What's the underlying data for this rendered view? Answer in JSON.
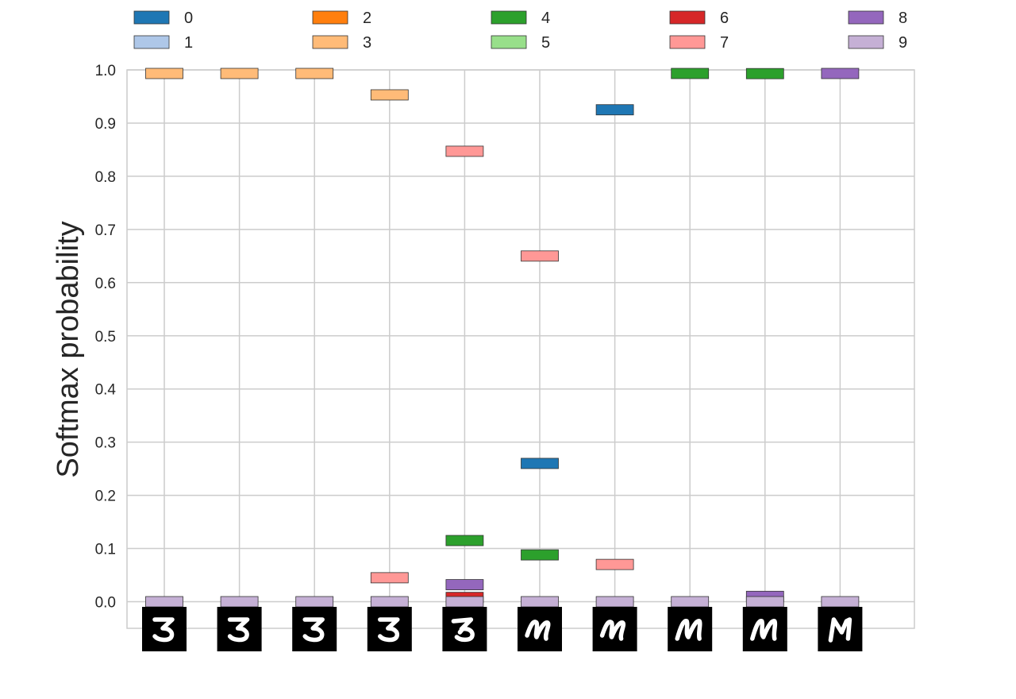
{
  "chart_data": {
    "type": "scatter",
    "title": "",
    "xlabel": "",
    "ylabel": "Softmax probability",
    "ylim": [
      -0.05,
      1.0
    ],
    "yticks": [
      "0.0",
      "0.1",
      "0.2",
      "0.3",
      "0.4",
      "0.5",
      "0.6",
      "0.7",
      "0.8",
      "0.9",
      "1.0"
    ],
    "grid": true,
    "legend_position": "top",
    "x_tick_images": [
      "digit-3",
      "digit-3",
      "digit-3",
      "digit-3",
      "digit-3-to-7",
      "digit-7",
      "digit-7",
      "digit-4",
      "digit-4",
      "digit-8"
    ],
    "series": [
      {
        "name": "0",
        "color": "#1f77b4",
        "values": [
          0.0,
          0.0,
          0.0,
          0.0,
          0.0,
          0.26,
          0.925,
          0.0,
          0.0,
          0.0
        ]
      },
      {
        "name": "1",
        "color": "#aec7e8",
        "values": [
          0.0,
          0.0,
          0.0,
          0.0,
          0.0,
          0.0,
          0.0,
          0.0,
          0.0,
          0.0
        ]
      },
      {
        "name": "2",
        "color": "#ff7f0e",
        "values": [
          0.0,
          0.0,
          0.0,
          0.0,
          0.0,
          0.0,
          0.0,
          0.0,
          0.0,
          0.0
        ]
      },
      {
        "name": "3",
        "color": "#ffbb78",
        "values": [
          0.995,
          0.995,
          0.995,
          0.953,
          0.0,
          0.0,
          0.0,
          0.0,
          0.0,
          0.0
        ]
      },
      {
        "name": "4",
        "color": "#2ca02c",
        "values": [
          0.0,
          0.0,
          0.0,
          0.0,
          0.115,
          0.088,
          0.0,
          0.995,
          0.993,
          0.0
        ]
      },
      {
        "name": "5",
        "color": "#98df8a",
        "values": [
          0.0,
          0.0,
          0.0,
          0.0,
          0.0,
          0.0,
          0.0,
          0.0,
          0.0,
          0.0
        ]
      },
      {
        "name": "6",
        "color": "#d62728",
        "values": [
          0.0,
          0.0,
          0.0,
          0.0,
          0.008,
          0.0,
          0.0,
          0.0,
          0.0,
          0.0
        ]
      },
      {
        "name": "7",
        "color": "#ff9896",
        "values": [
          0.0,
          0.0,
          0.0,
          0.045,
          0.847,
          0.65,
          0.07,
          0.0,
          0.0,
          0.0
        ]
      },
      {
        "name": "8",
        "color": "#9467bd",
        "values": [
          0.0,
          0.0,
          0.0,
          0.0,
          0.032,
          0.0,
          0.0,
          0.0,
          0.01,
          0.995
        ]
      },
      {
        "name": "9",
        "color": "#c5b0d5",
        "values": [
          0.0,
          0.0,
          0.0,
          0.0,
          0.0,
          0.0,
          0.0,
          0.0,
          0.0,
          0.0
        ]
      }
    ]
  }
}
